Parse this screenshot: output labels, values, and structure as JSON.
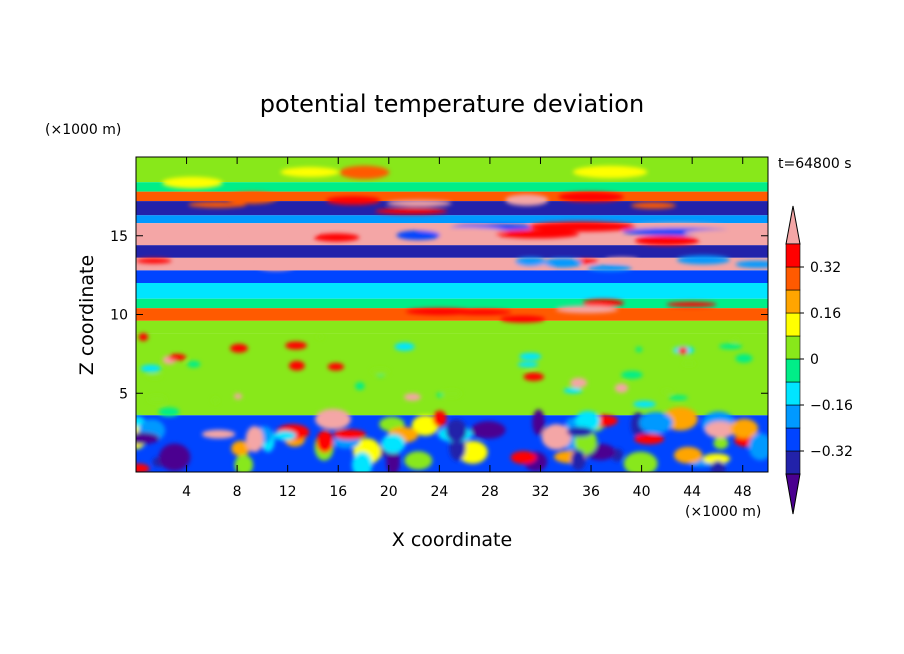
{
  "chart_data": {
    "type": "heatmap",
    "title": "potential temperature deviation",
    "xlabel": "X coordinate",
    "ylabel": "Z coordinate",
    "x_unit": "(×1000 m)",
    "y_unit": "(×1000 m)",
    "time_label": "t=64800 s",
    "xlim": [
      0,
      50
    ],
    "ylim": [
      0,
      20
    ],
    "x_ticks": [
      4,
      8,
      12,
      16,
      20,
      24,
      28,
      32,
      36,
      40,
      44,
      48
    ],
    "y_ticks": [
      5,
      10,
      15
    ],
    "colorbar": {
      "labels": [
        "0.32",
        "0.16",
        "0",
        "−0.16",
        "−0.32"
      ],
      "label_values": [
        0.32,
        0.16,
        0,
        -0.16,
        -0.32
      ],
      "levels": [
        -0.4,
        -0.32,
        -0.24,
        -0.16,
        -0.08,
        0,
        0.08,
        0.16,
        0.24,
        0.32,
        0.4
      ],
      "colors": [
        "#4b0090",
        "#2222aa",
        "#0044ff",
        "#0099ff",
        "#00e5ff",
        "#00ee88",
        "#88e81a",
        "#ffff00",
        "#ffa500",
        "#ff5a00",
        "#ff0000",
        "#f4a6a6"
      ],
      "extend": "both"
    },
    "bands": [
      {
        "z": [
          18.4,
          20.0
        ],
        "value": 0.02
      },
      {
        "z": [
          17.8,
          18.4
        ],
        "value": -0.06
      },
      {
        "z": [
          17.2,
          17.8
        ],
        "value": 0.28
      },
      {
        "z": [
          16.3,
          17.2
        ],
        "value": -0.36
      },
      {
        "z": [
          15.8,
          16.3
        ],
        "value": -0.2
      },
      {
        "z": [
          14.4,
          15.8
        ],
        "value": 0.42
      },
      {
        "z": [
          13.6,
          14.4
        ],
        "value": -0.34
      },
      {
        "z": [
          12.8,
          13.6
        ],
        "value": 0.42
      },
      {
        "z": [
          12.0,
          12.8
        ],
        "value": -0.28
      },
      {
        "z": [
          11.0,
          12.0
        ],
        "value": -0.12
      },
      {
        "z": [
          10.4,
          11.0
        ],
        "value": -0.04
      },
      {
        "z": [
          9.6,
          10.4
        ],
        "value": 0.3
      },
      {
        "z": [
          8.8,
          9.6
        ],
        "value": 0.02
      },
      {
        "z": [
          3.6,
          8.8
        ],
        "value": 0.06
      },
      {
        "z": [
          0.0,
          3.6
        ],
        "value": -0.3
      }
    ]
  }
}
